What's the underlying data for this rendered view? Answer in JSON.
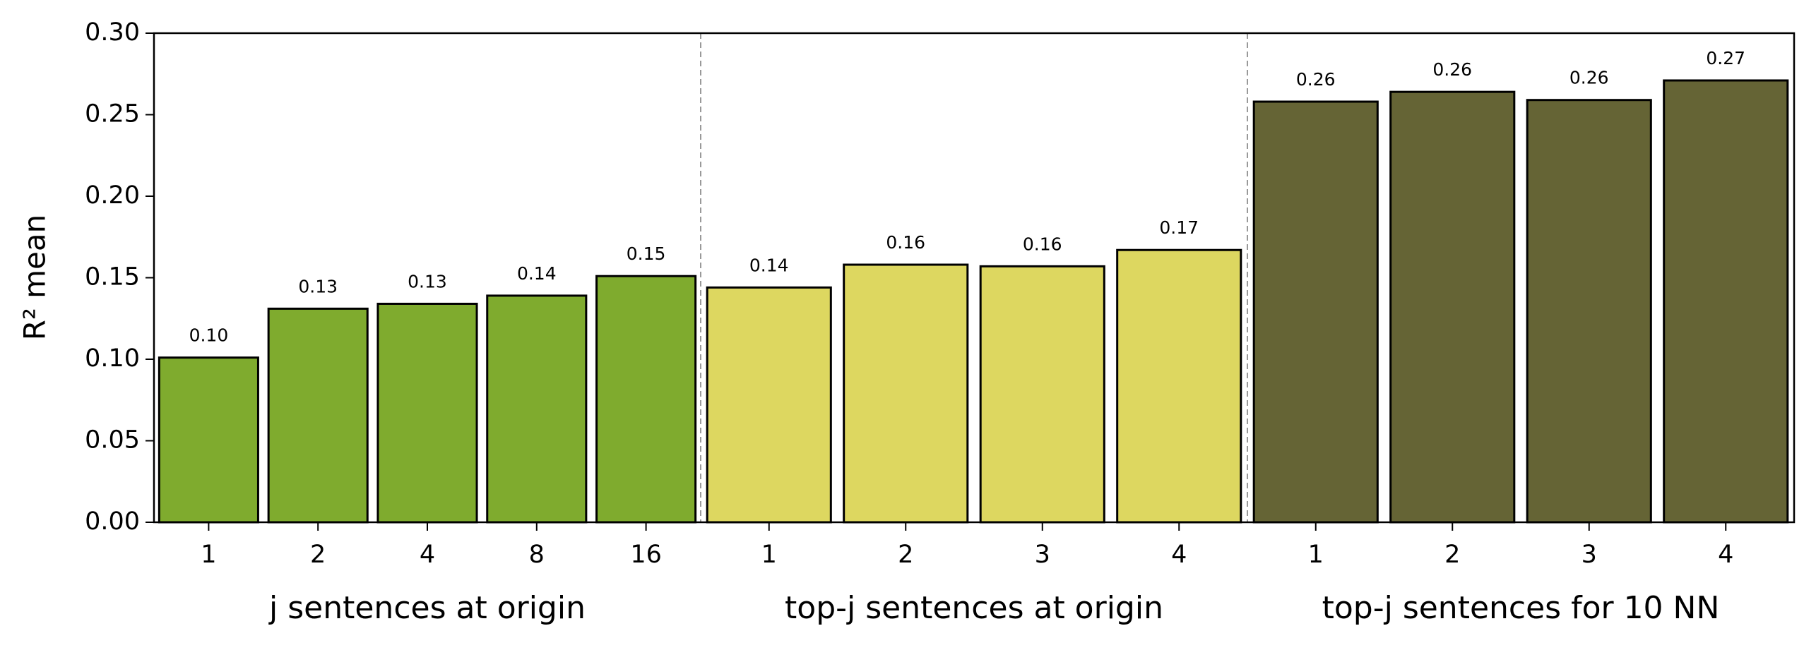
{
  "chart_data": {
    "type": "bar",
    "y_label": "R² mean",
    "ylim": [
      0,
      0.3
    ],
    "yticks": [
      {
        "value": 0,
        "label": "0.00"
      },
      {
        "value": 0.05,
        "label": "0.05"
      },
      {
        "value": 0.1,
        "label": "0.10"
      },
      {
        "value": 0.15,
        "label": "0.15"
      },
      {
        "value": 0.2,
        "label": "0.20"
      },
      {
        "value": 0.25,
        "label": "0.25"
      },
      {
        "value": 0.3,
        "label": "0.30"
      }
    ],
    "groups": [
      {
        "name": "j sentences at origin",
        "color": "#7fab2e",
        "categories": [
          "1",
          "2",
          "4",
          "8",
          "16"
        ],
        "values": [
          0.101,
          0.131,
          0.134,
          0.139,
          0.151
        ],
        "value_labels": [
          "0.10",
          "0.13",
          "0.13",
          "0.14",
          "0.15"
        ]
      },
      {
        "name": "top-j sentences at origin",
        "color": "#ddd760",
        "categories": [
          "1",
          "2",
          "3",
          "4"
        ],
        "values": [
          0.144,
          0.158,
          0.157,
          0.167
        ],
        "value_labels": [
          "0.14",
          "0.16",
          "0.16",
          "0.17"
        ]
      },
      {
        "name": "top-j sentences for 10 NN",
        "color": "#656435",
        "categories": [
          "1",
          "2",
          "3",
          "4"
        ],
        "values": [
          0.258,
          0.264,
          0.259,
          0.271
        ],
        "value_labels": [
          "0.26",
          "0.26",
          "0.26",
          "0.27"
        ]
      }
    ]
  }
}
